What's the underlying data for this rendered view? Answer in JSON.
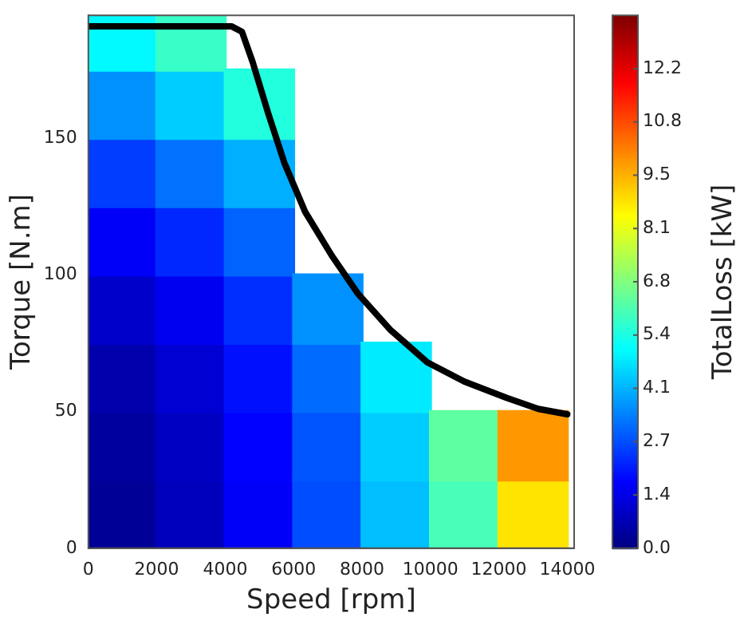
{
  "chart_data": {
    "type": "scatter",
    "xlabel": "Speed [rpm]",
    "ylabel": "Torque [N.m]",
    "clabel": "TotalLoss [kW]",
    "xlim": [
      0,
      14200
    ],
    "xticks": [
      0,
      2000,
      4000,
      6000,
      8000,
      10000,
      12000,
      14000
    ],
    "ylim": [
      0,
      195
    ],
    "yticks": [
      0,
      50,
      100,
      150
    ],
    "clim": [
      0,
      13.5
    ],
    "cticks": [
      {
        "value": 0,
        "label": "0.0"
      },
      {
        "value": 1.35,
        "label": "1.4"
      },
      {
        "value": 2.7,
        "label": "2.7"
      },
      {
        "value": 4.05,
        "label": "4.1"
      },
      {
        "value": 5.4,
        "label": "5.4"
      },
      {
        "value": 6.75,
        "label": "6.8"
      },
      {
        "value": 8.1,
        "label": "8.1"
      },
      {
        "value": 9.45,
        "label": "9.5"
      },
      {
        "value": 10.8,
        "label": "10.8"
      },
      {
        "value": 12.15,
        "label": "12.2"
      }
    ],
    "grid": false,
    "legend": false,
    "marker": "square",
    "series": [
      {
        "type": "scatter",
        "x": [
          1000,
          1000,
          1000,
          1000,
          1000,
          1000,
          1000,
          1000,
          3000,
          3000,
          3000,
          3000,
          3000,
          3000,
          3000,
          3000,
          5000,
          5000,
          5000,
          5000,
          5000,
          5000,
          5000,
          7000,
          7000,
          7000,
          7000,
          9000,
          9000,
          9000,
          11000,
          11000,
          13000,
          13000
        ],
        "values": [
          12.5,
          37.5,
          62.5,
          87.5,
          112.5,
          137.5,
          162.5,
          187.5,
          12.5,
          37.5,
          62.5,
          87.5,
          112.5,
          137.5,
          162.5,
          187.5,
          12.5,
          37.5,
          62.5,
          87.5,
          112.5,
          137.5,
          162.5,
          12.5,
          37.5,
          62.5,
          87.5,
          12.5,
          37.5,
          62.5,
          12.5,
          37.5,
          12.5,
          37.5
        ],
        "cvalues": [
          0.3,
          0.4,
          0.6,
          1.0,
          1.6,
          2.5,
          3.6,
          5.0,
          0.8,
          0.9,
          1.1,
          1.5,
          2.2,
          3.2,
          4.4,
          5.8,
          1.6,
          1.7,
          1.9,
          2.3,
          3.0,
          4.0,
          5.5,
          2.7,
          2.8,
          3.1,
          3.6,
          4.2,
          4.4,
          4.8,
          6.0,
          6.3,
          8.8,
          9.8
        ],
        "colors": [
          "#000096",
          "#00009e",
          "#0000ad",
          "#0000cb",
          "#0000f8",
          "#003dff",
          "#0091ff",
          "#00faff",
          "#0000bc",
          "#0000c4",
          "#0000d3",
          "#0000f1",
          "#0027ff",
          "#0072ff",
          "#00cdff",
          "#38ffc7",
          "#0000f8",
          "#0001ff",
          "#0010ff",
          "#002eff",
          "#0063ff",
          "#00afff",
          "#21ffde",
          "#004dff",
          "#0054ff",
          "#006bff",
          "#0091ff",
          "#00beff",
          "#00cdff",
          "#00ebff",
          "#47ffb8",
          "#5effa1",
          "#ffe400",
          "#ff9800"
        ]
      },
      {
        "type": "line",
        "color": "#000000",
        "marker": "none",
        "x": [
          0,
          4180,
          4490,
          4800,
          5260,
          5730,
          6340,
          7120,
          7890,
          8820,
          9910,
          10990,
          12230,
          13150,
          14000
        ],
        "values": [
          191,
          191,
          189,
          178,
          159,
          141,
          123,
          107,
          93,
          80,
          68,
          61,
          55,
          51,
          49
        ]
      }
    ]
  }
}
